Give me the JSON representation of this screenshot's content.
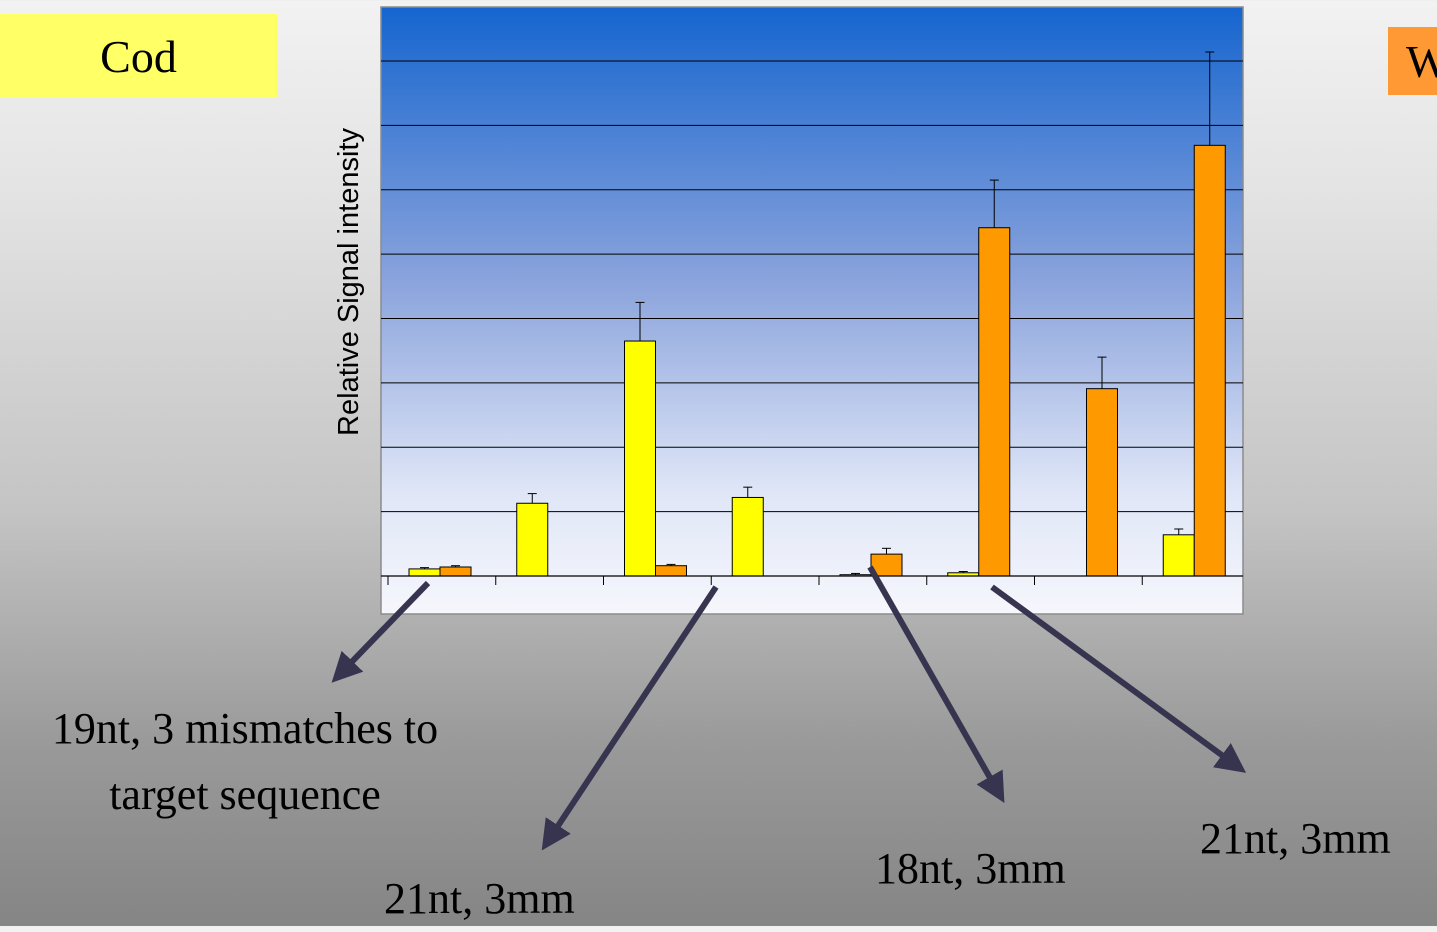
{
  "legend": {
    "cod_label": "Cod",
    "w_label": "W",
    "cod_color": "#ffff00",
    "w_color": "#ff9900"
  },
  "annotations": [
    {
      "line1": "19nt, 3 mismatches to",
      "line2": "target sequence"
    },
    {
      "text": "21nt, 3mm"
    },
    {
      "text": "18nt, 3mm"
    },
    {
      "text": "21nt, 3mm"
    }
  ],
  "arrow_color": "#36344f",
  "chart_data": {
    "type": "bar",
    "ylabel": "Relative Signal intensity",
    "xlabel": "",
    "ylim": [
      0,
      8
    ],
    "grid": true,
    "groups": 8,
    "series": [
      {
        "name": "Cod",
        "color": "#ffff00",
        "values": [
          0.11,
          1.13,
          3.65,
          1.22,
          0.02,
          0.05,
          0,
          0.64
        ],
        "errors": [
          0.02,
          0.15,
          0.6,
          0.16,
          0.02,
          0.02,
          0,
          0.09
        ]
      },
      {
        "name": "W",
        "color": "#ff9900",
        "values": [
          0.14,
          0,
          0.16,
          0,
          0.34,
          5.41,
          2.91,
          6.69
        ],
        "errors": [
          0.02,
          0,
          0.02,
          0,
          0.09,
          0.74,
          0.49,
          1.45
        ]
      }
    ]
  }
}
